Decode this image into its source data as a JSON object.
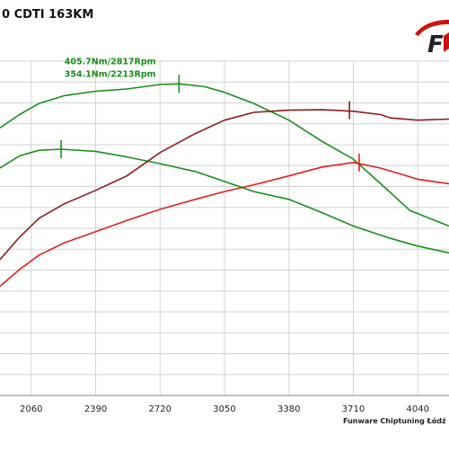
{
  "title": "0 CDTI 163KM",
  "footer": "Funware Chiptuning Łódź",
  "logo_text": "F",
  "chart_data": {
    "type": "line",
    "title": "0 CDTI 163KM",
    "xlabel": "",
    "ylabel": "",
    "xlim": [
      1900,
      4200
    ],
    "ylim": [
      0,
      15
    ],
    "x_ticks": [
      2060,
      2390,
      2720,
      3050,
      3380,
      3710,
      4040
    ],
    "x_tick_labels": [
      "2060",
      "2390",
      "2720",
      "3050",
      "3380",
      "3710",
      "4040"
    ],
    "grid": {
      "horizontal": true,
      "vertical": true,
      "h_lines": 16
    },
    "series": [
      {
        "color": "#1b8f1b",
        "values": [
          {
            "x": 1900,
            "y": 12.0
          },
          {
            "x": 2000,
            "y": 12.6
          },
          {
            "x": 2100,
            "y": 13.1
          },
          {
            "x": 2230,
            "y": 13.45
          },
          {
            "x": 2390,
            "y": 13.65
          },
          {
            "x": 2550,
            "y": 13.75
          },
          {
            "x": 2720,
            "y": 13.95
          },
          {
            "x": 2817,
            "y": 13.98
          },
          {
            "x": 2950,
            "y": 13.85
          },
          {
            "x": 3050,
            "y": 13.6
          },
          {
            "x": 3200,
            "y": 13.1
          },
          {
            "x": 3380,
            "y": 12.35
          },
          {
            "x": 3550,
            "y": 11.4
          },
          {
            "x": 3710,
            "y": 10.6
          },
          {
            "x": 3850,
            "y": 9.5
          },
          {
            "x": 4000,
            "y": 8.3
          },
          {
            "x": 4200,
            "y": 7.6
          }
        ]
      },
      {
        "color": "#1b8f1b",
        "values": [
          {
            "x": 1900,
            "y": 10.2
          },
          {
            "x": 2000,
            "y": 10.75
          },
          {
            "x": 2100,
            "y": 11.0
          },
          {
            "x": 2213,
            "y": 11.05
          },
          {
            "x": 2390,
            "y": 10.95
          },
          {
            "x": 2550,
            "y": 10.7
          },
          {
            "x": 2720,
            "y": 10.4
          },
          {
            "x": 2900,
            "y": 10.05
          },
          {
            "x": 3050,
            "y": 9.6
          },
          {
            "x": 3200,
            "y": 9.15
          },
          {
            "x": 3380,
            "y": 8.8
          },
          {
            "x": 3550,
            "y": 8.2
          },
          {
            "x": 3710,
            "y": 7.6
          },
          {
            "x": 3900,
            "y": 7.05
          },
          {
            "x": 4040,
            "y": 6.7
          },
          {
            "x": 4200,
            "y": 6.4
          }
        ]
      },
      {
        "color": "#8b1c1c",
        "values": [
          {
            "x": 1900,
            "y": 6.1
          },
          {
            "x": 2000,
            "y": 7.1
          },
          {
            "x": 2100,
            "y": 7.95
          },
          {
            "x": 2230,
            "y": 8.6
          },
          {
            "x": 2390,
            "y": 9.2
          },
          {
            "x": 2550,
            "y": 9.85
          },
          {
            "x": 2720,
            "y": 10.9
          },
          {
            "x": 2900,
            "y": 11.75
          },
          {
            "x": 3050,
            "y": 12.35
          },
          {
            "x": 3200,
            "y": 12.7
          },
          {
            "x": 3380,
            "y": 12.8
          },
          {
            "x": 3550,
            "y": 12.82
          },
          {
            "x": 3710,
            "y": 12.75
          },
          {
            "x": 3850,
            "y": 12.6
          },
          {
            "x": 3900,
            "y": 12.45
          },
          {
            "x": 4040,
            "y": 12.35
          },
          {
            "x": 4200,
            "y": 12.4
          }
        ]
      },
      {
        "color": "#e31e1e",
        "values": [
          {
            "x": 1900,
            "y": 4.9
          },
          {
            "x": 2000,
            "y": 5.65
          },
          {
            "x": 2100,
            "y": 6.3
          },
          {
            "x": 2230,
            "y": 6.85
          },
          {
            "x": 2390,
            "y": 7.35
          },
          {
            "x": 2550,
            "y": 7.85
          },
          {
            "x": 2720,
            "y": 8.35
          },
          {
            "x": 2900,
            "y": 8.8
          },
          {
            "x": 3050,
            "y": 9.15
          },
          {
            "x": 3200,
            "y": 9.45
          },
          {
            "x": 3380,
            "y": 9.85
          },
          {
            "x": 3550,
            "y": 10.25
          },
          {
            "x": 3710,
            "y": 10.45
          },
          {
            "x": 3850,
            "y": 10.2
          },
          {
            "x": 4040,
            "y": 9.7
          },
          {
            "x": 4200,
            "y": 9.5
          }
        ]
      }
    ],
    "markers": [
      {
        "series": 0,
        "x": 2817,
        "y": 13.98
      },
      {
        "series": 1,
        "x": 2213,
        "y": 11.05
      },
      {
        "series": 2,
        "x": 3690,
        "y": 12.8
      },
      {
        "series": 3,
        "x": 3740,
        "y": 10.45
      }
    ],
    "annotations": [
      {
        "text": "405.7Nm/2817Rpm",
        "x": 2230,
        "y": 14.85,
        "color": "#1b8f1b"
      },
      {
        "text": "354.1Nm/2213Rpm",
        "x": 2230,
        "y": 14.3,
        "color": "#1b8f1b"
      }
    ]
  }
}
